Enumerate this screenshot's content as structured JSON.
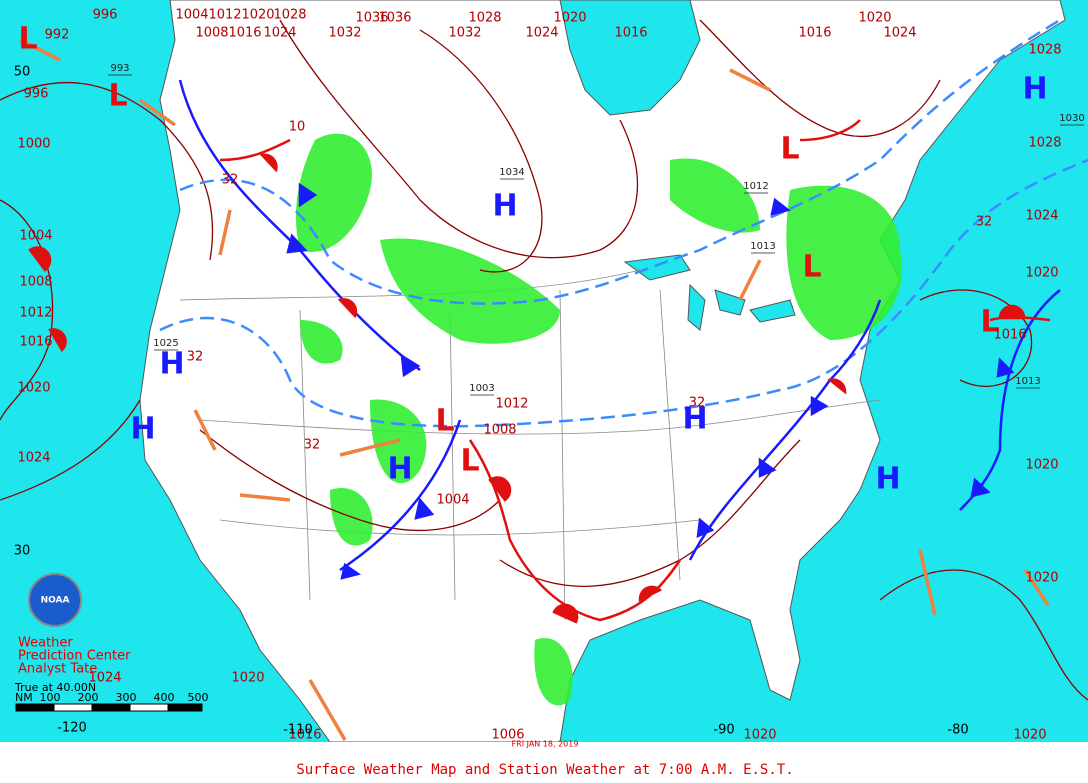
{
  "map": {
    "caption": "Surface Weather Map and Station Weather at 7:00 A.M. E.S.T.",
    "date": "FRI JAN 18, 2019",
    "credit": [
      "Weather",
      "Prediction Center",
      "Analyst Tate"
    ],
    "logo": "NOAA",
    "projection_note": "True at 40.00N",
    "scale": {
      "unit": "NM",
      "ticks": [
        100,
        200,
        300,
        400,
        500
      ]
    },
    "high_color": "#1a1aff",
    "low_color": "#e01010",
    "highs": [
      "H",
      "H",
      "H",
      "H",
      "H",
      "H",
      "H"
    ],
    "lows": [
      "L",
      "L",
      "L",
      "L",
      "L",
      "L",
      "L"
    ],
    "isobar_labels": [
      996,
      1004,
      1012,
      1020,
      1028,
      1036,
      1036,
      1028,
      1020,
      1032,
      1032,
      1024,
      1016,
      1016,
      1020,
      1024,
      992,
      996,
      1000,
      1004,
      1008,
      1012,
      1016,
      1020,
      1024,
      1008,
      1016,
      1024,
      1028,
      1028,
      1024,
      1020,
      1016,
      1020,
      1020,
      1020,
      1020,
      1020,
      1024,
      1004,
      1008,
      1012,
      1016,
      1006
    ],
    "boxed_labels": [
      993,
      1034,
      1025,
      1013,
      1030,
      1013,
      1012,
      1003
    ],
    "thickness_labels": [
      32,
      32,
      32,
      32,
      32,
      10
    ],
    "lat_labels": [
      50,
      30
    ],
    "lon_labels": [
      -120,
      -110,
      -90,
      -80
    ]
  }
}
